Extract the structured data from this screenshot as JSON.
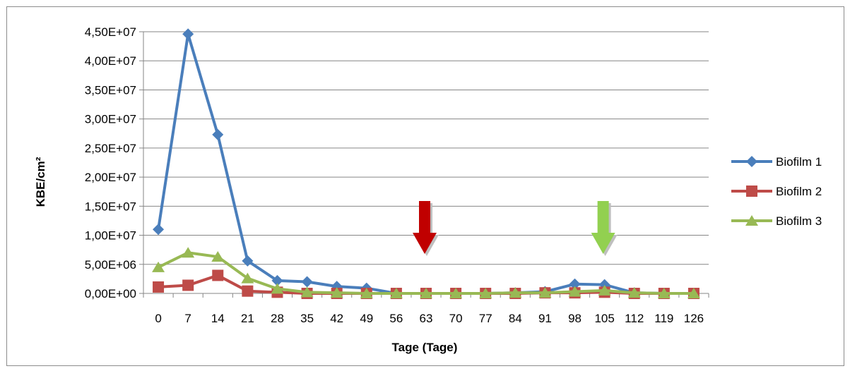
{
  "chart_data": {
    "type": "line",
    "title": "",
    "xlabel": "Tage (Tage)",
    "ylabel": "KBE/cm²",
    "ylim": [
      0,
      45000000
    ],
    "grid": true,
    "legend_position": "right",
    "categories": [
      "0",
      "7",
      "14",
      "21",
      "28",
      "35",
      "42",
      "49",
      "56",
      "63",
      "70",
      "77",
      "84",
      "91",
      "98",
      "105",
      "112",
      "119",
      "126"
    ],
    "y_ticks": [
      "0,00E+00",
      "5,00E+06",
      "1,00E+07",
      "1,50E+07",
      "2,00E+07",
      "2,50E+07",
      "3,00E+07",
      "3,50E+07",
      "4,00E+07",
      "4,50E+07"
    ],
    "y_tick_values": [
      0,
      5000000,
      10000000,
      15000000,
      20000000,
      25000000,
      30000000,
      35000000,
      40000000,
      45000000
    ],
    "series": [
      {
        "name": "Biofilm 1",
        "color": "#4a7ebb",
        "marker": "diamond",
        "values": [
          11000000,
          44600000,
          27300000,
          5600000,
          2200000,
          2000000,
          1200000,
          900000,
          0,
          0,
          0,
          0,
          100000,
          300000,
          1600000,
          1500000,
          100000,
          0,
          0
        ]
      },
      {
        "name": "Biofilm 2",
        "color": "#be4b48",
        "marker": "square",
        "values": [
          1100000,
          1400000,
          3100000,
          400000,
          200000,
          0,
          0,
          0,
          0,
          0,
          0,
          0,
          0,
          100000,
          100000,
          200000,
          0,
          0,
          0
        ]
      },
      {
        "name": "Biofilm 3",
        "color": "#98b954",
        "marker": "triangle",
        "values": [
          4500000,
          7000000,
          6300000,
          2600000,
          800000,
          200000,
          100000,
          0,
          0,
          0,
          0,
          0,
          100000,
          100000,
          300000,
          500000,
          100000,
          0,
          0
        ]
      }
    ],
    "annotations": [
      {
        "type": "down-arrow",
        "at_x": "63",
        "color": "#c00000"
      },
      {
        "type": "down-arrow",
        "at_x": "105",
        "color": "#92d050"
      }
    ]
  }
}
